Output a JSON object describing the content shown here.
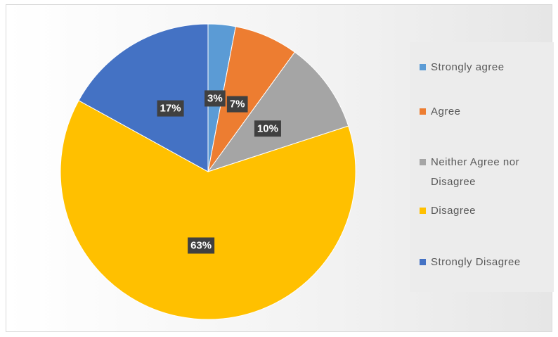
{
  "chart_data": {
    "type": "pie",
    "categories": [
      "Strongly agree",
      "Agree",
      "Neither Agree nor Disagree",
      "Disagree",
      "Strongly Disagree"
    ],
    "values": [
      3,
      7,
      10,
      63,
      17
    ],
    "value_labels": [
      "3%",
      "7%",
      "10%",
      "63%",
      "17%"
    ],
    "colors": [
      "#5b9bd5",
      "#ed7d31",
      "#a5a5a5",
      "#ffc000",
      "#4472c4"
    ],
    "legend": "right"
  }
}
